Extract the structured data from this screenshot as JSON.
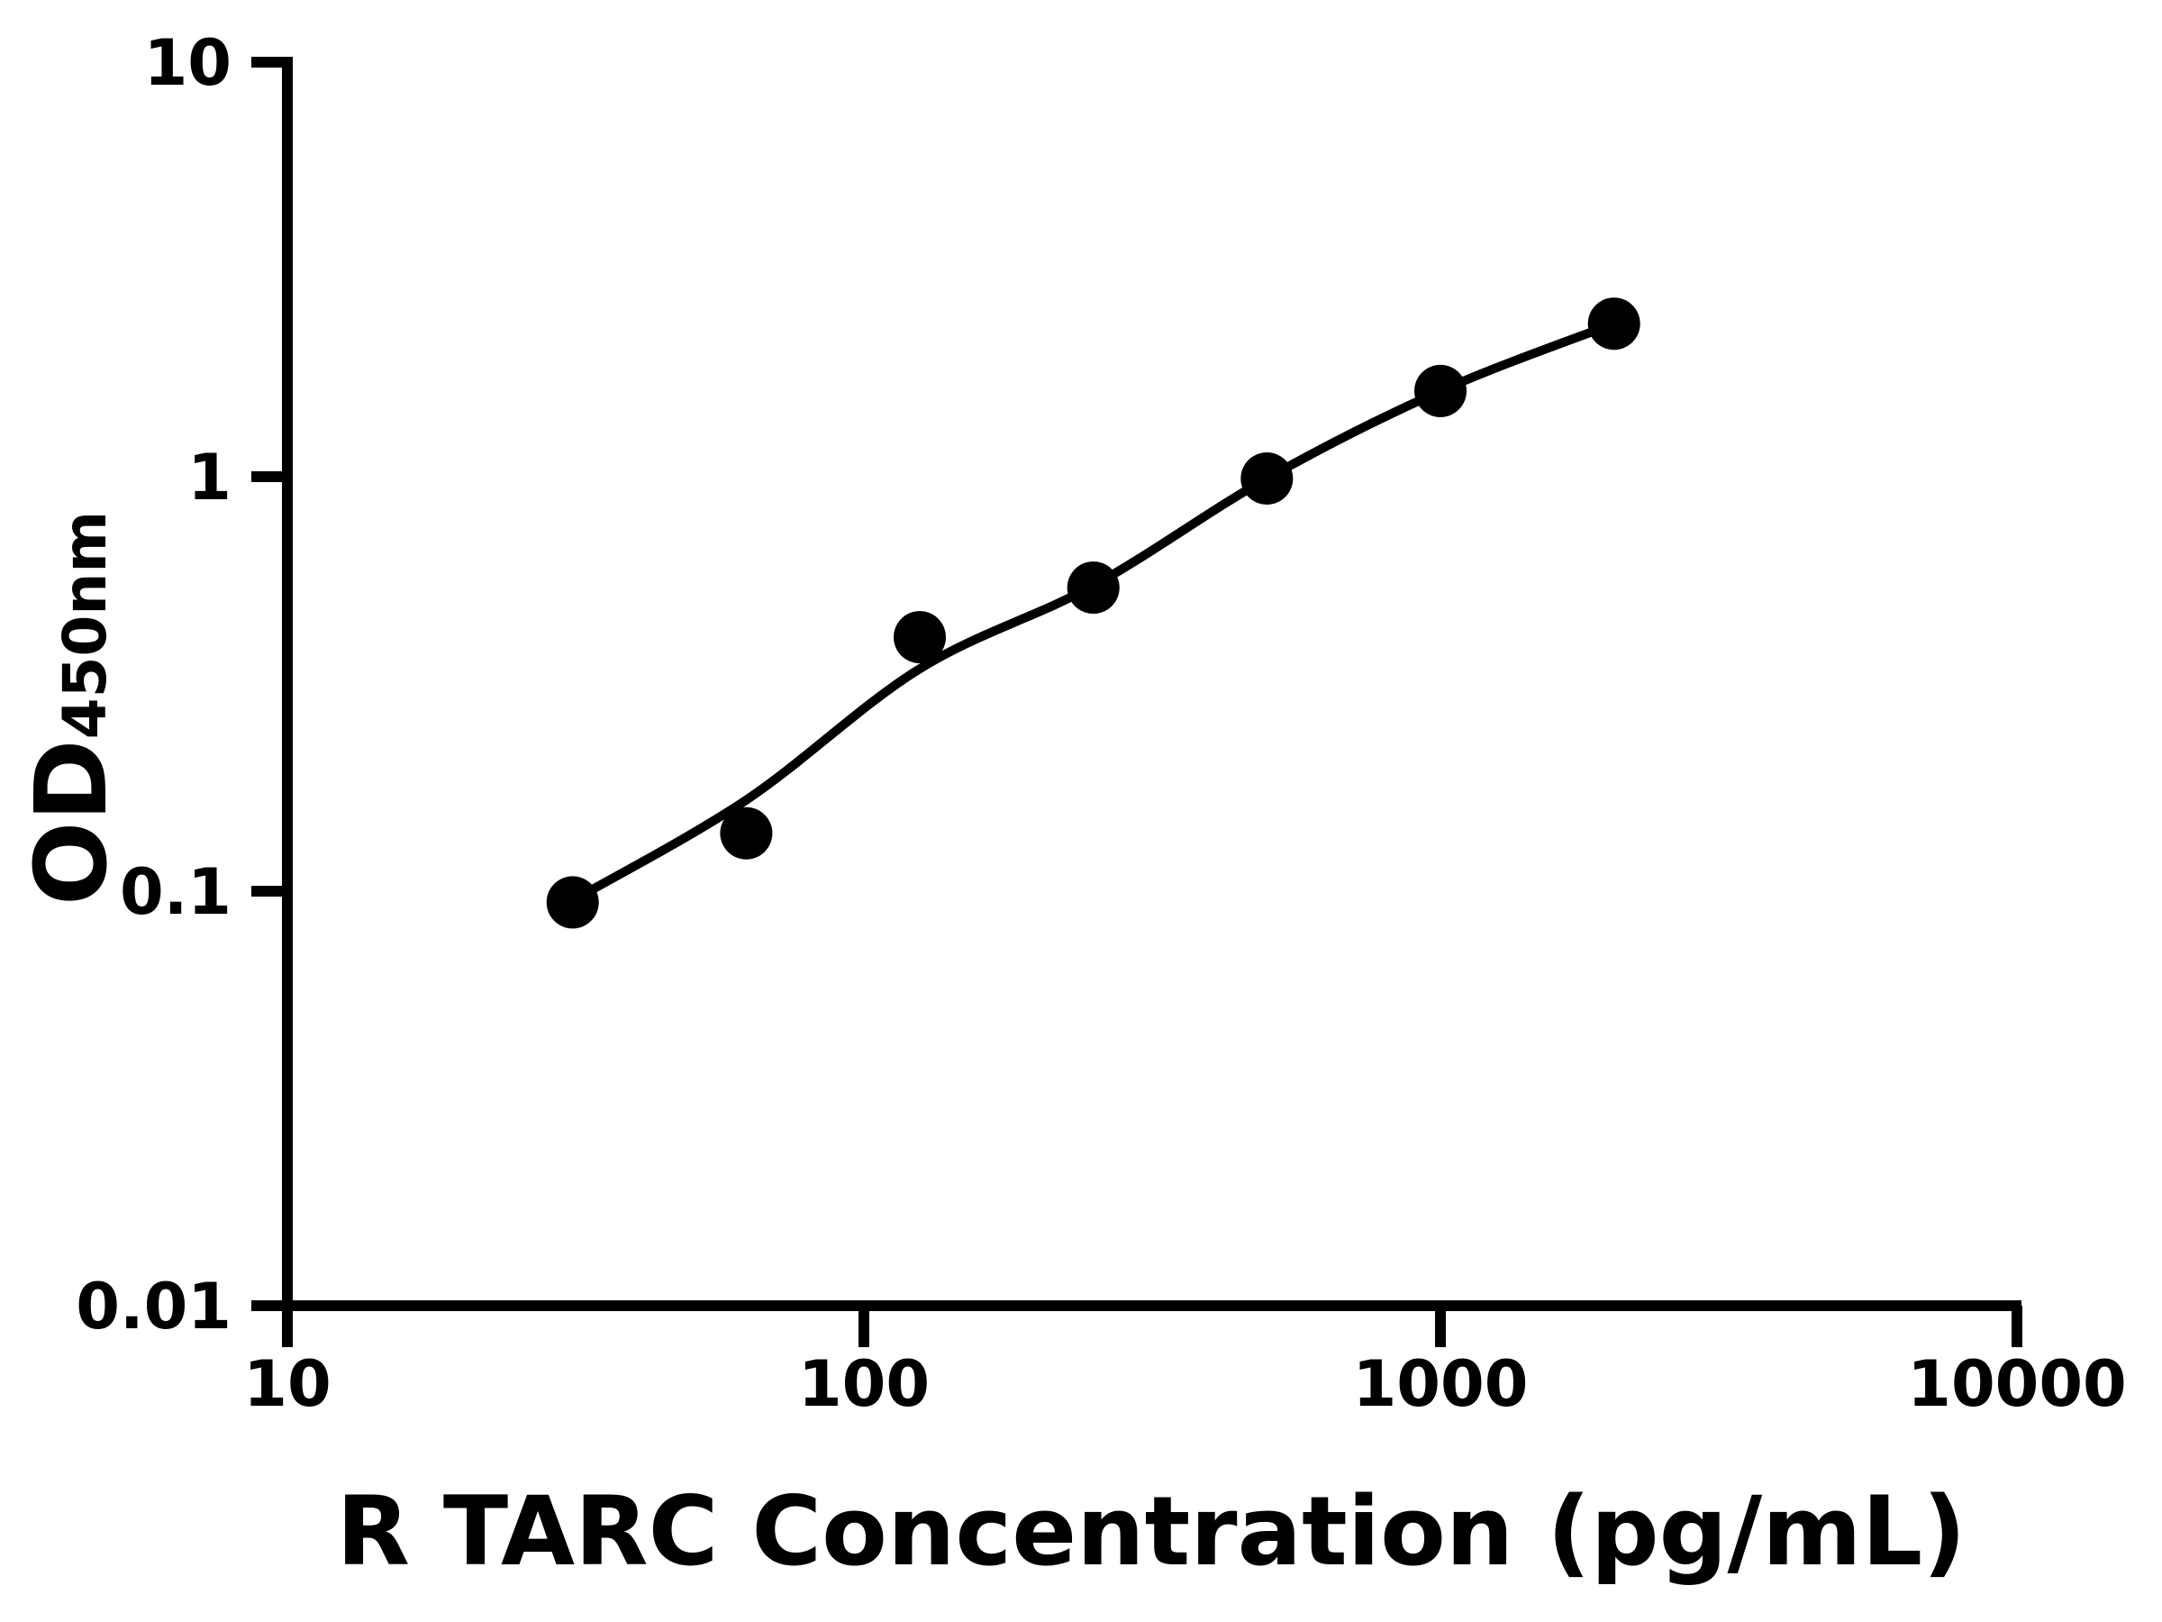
{
  "chart_data": {
    "type": "scatter",
    "title": "",
    "xlabel": "R TARC Concentration (pg/mL)",
    "ylabel": "OD450nm",
    "ylabel_main": "OD",
    "ylabel_sub": "450nm",
    "x_scale": "log",
    "y_scale": "log",
    "xlim": [
      10,
      10000
    ],
    "ylim": [
      0.01,
      10
    ],
    "x_tick_labels": [
      "10",
      "100",
      "1000",
      "10000"
    ],
    "y_tick_labels": [
      "10",
      "1",
      "0.1",
      "0.01"
    ],
    "x_tick_values": [
      10,
      100,
      1000,
      10000
    ],
    "y_tick_values": [
      10,
      1,
      0.1,
      0.01
    ],
    "grid": false,
    "legend_position": "none",
    "colors": {
      "marker": "#000000",
      "line": "#000000",
      "axis": "#000000",
      "background": "#ffffff"
    },
    "series": [
      {
        "name": "standard-points",
        "type": "scatter",
        "x": [
          31.25,
          62.5,
          125,
          250,
          500,
          1000,
          2000
        ],
        "y": [
          0.094,
          0.138,
          0.41,
          0.54,
          0.99,
          1.61,
          2.34
        ]
      },
      {
        "name": "fit-curve",
        "type": "line",
        "x": [
          31.25,
          62.5,
          125,
          250,
          500,
          1000,
          2000
        ],
        "y": [
          0.095,
          0.166,
          0.344,
          0.546,
          0.99,
          1.61,
          2.34
        ]
      }
    ]
  }
}
